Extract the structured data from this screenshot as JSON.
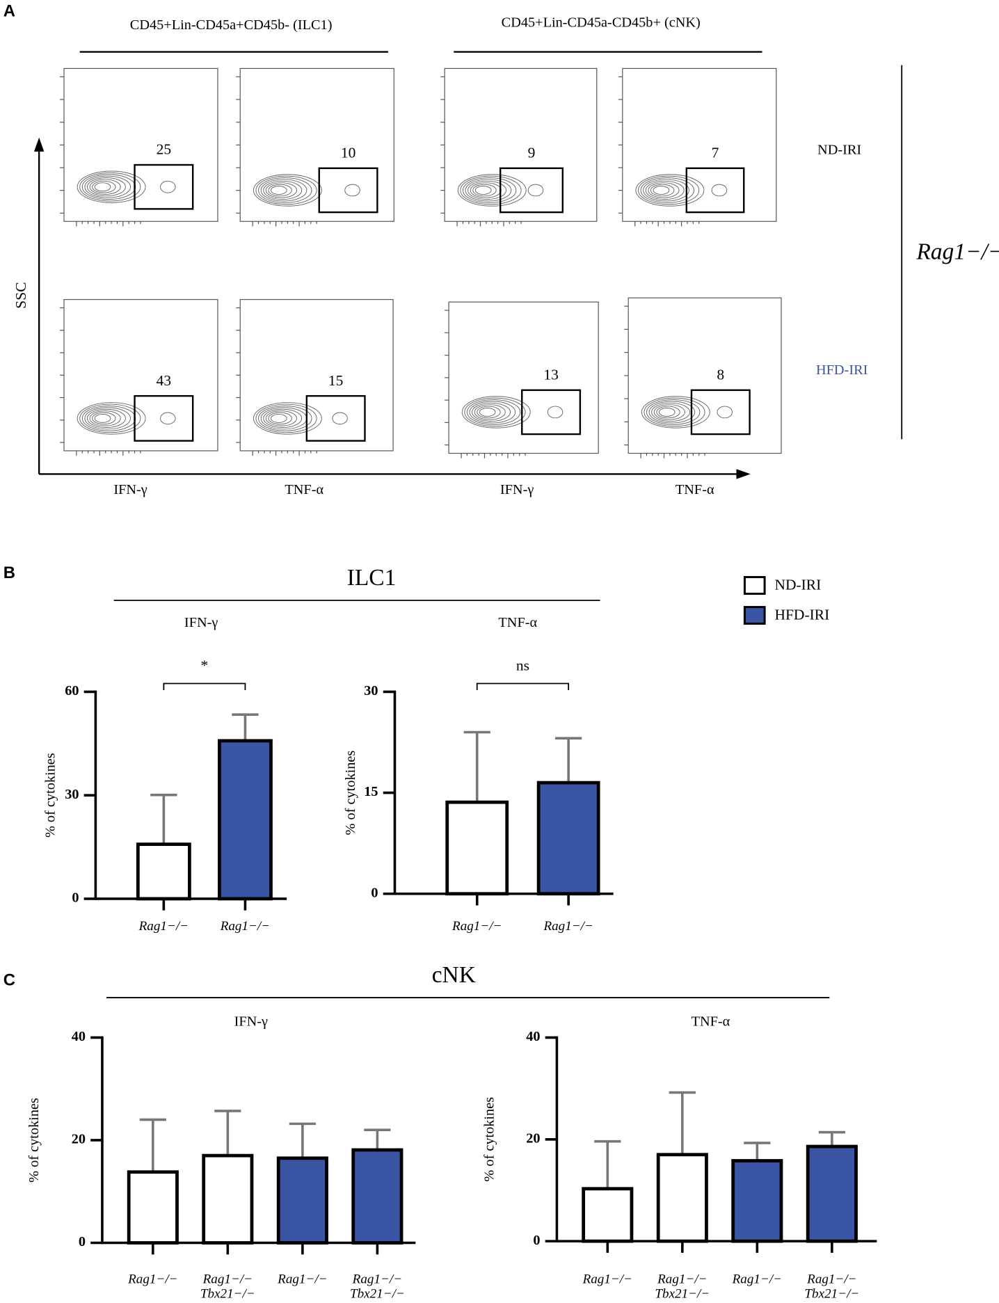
{
  "panel_labels": [
    "A",
    "B",
    "C"
  ],
  "panel_a": {
    "groups": [
      "CD45+Lin-CD45a+CD45b- (ILC1)",
      "CD45+Lin-CD45a-CD45b+ (cNK)"
    ],
    "y_axis": "SSC",
    "x_labels": [
      "IFN-γ",
      "TNF-α",
      "IFN-γ",
      "TNF-α"
    ],
    "rows": [
      {
        "name": "ND-IRI",
        "gates": [
          25,
          10,
          9,
          7
        ]
      },
      {
        "name": "HFD-IRI",
        "gates": [
          43,
          15,
          13,
          8
        ]
      }
    ],
    "strain": "Rag1−/−"
  },
  "panel_b_title": "ILC1",
  "panel_c_title": "cNK",
  "chart_data": [
    {
      "type": "bar",
      "title": "IFN-γ",
      "ylabel": "% of cytokines",
      "categories": [
        "Rag1−/−",
        "Rag1−/−"
      ],
      "series": [
        {
          "name": "ND-IRI",
          "color": "#ffffff",
          "values": [
            15.8,
            null
          ],
          "errors": [
            14.3,
            null
          ]
        },
        {
          "name": "HFD-IRI",
          "color": "#3a55a4",
          "values": [
            null,
            45.8
          ],
          "errors": [
            null,
            7.6
          ]
        }
      ],
      "ylim": [
        0,
        60
      ],
      "yticks": [
        0,
        30,
        60
      ],
      "significance": "*",
      "legend": true
    },
    {
      "type": "bar",
      "title": "TNF-α",
      "ylabel": "% of cytokines",
      "categories": [
        "Rag1−/−",
        "Rag1−/−"
      ],
      "series": [
        {
          "name": "ND-IRI",
          "color": "#ffffff",
          "values": [
            13.6,
            null
          ],
          "errors": [
            10.4,
            null
          ]
        },
        {
          "name": "HFD-IRI",
          "color": "#3a55a4",
          "values": [
            null,
            16.5
          ],
          "errors": [
            null,
            6.6
          ]
        }
      ],
      "ylim": [
        0,
        30
      ],
      "yticks": [
        0,
        15,
        30
      ],
      "significance": "ns",
      "legend": false
    },
    {
      "type": "bar",
      "title": "IFN-γ",
      "ylabel": "% of cytokines",
      "categories": [
        "Rag1−/−",
        "Rag1−/−\nTbx21−/−",
        "Rag1−/−",
        "Rag1−/−\nTbx21−/−"
      ],
      "series": [
        {
          "name": "ND-IRI",
          "color": "#ffffff",
          "values": [
            13.8,
            17.0,
            null,
            null
          ],
          "errors": [
            10.2,
            8.7,
            null,
            null
          ]
        },
        {
          "name": "HFD-IRI",
          "color": "#3a55a4",
          "values": [
            null,
            null,
            16.5,
            18.1
          ],
          "errors": [
            null,
            null,
            6.7,
            3.9
          ]
        }
      ],
      "ylim": [
        0,
        40
      ],
      "yticks": [
        0,
        20,
        40
      ],
      "legend": false
    },
    {
      "type": "bar",
      "title": "TNF-α",
      "ylabel": "% of cytokines",
      "categories": [
        "Rag1−/−",
        "Rag1−/−\nTbx21−/−",
        "Rag1−/−",
        "Rag1−/−\nTbx21−/−"
      ],
      "series": [
        {
          "name": "ND-IRI",
          "color": "#ffffff",
          "values": [
            10.3,
            17.0,
            null,
            null
          ],
          "errors": [
            9.3,
            12.2,
            null,
            null
          ]
        },
        {
          "name": "HFD-IRI",
          "color": "#3a55a4",
          "values": [
            null,
            null,
            15.8,
            18.6
          ],
          "errors": [
            null,
            null,
            3.5,
            2.8
          ]
        }
      ],
      "ylim": [
        0,
        40
      ],
      "yticks": [
        0,
        20,
        40
      ],
      "legend": false
    }
  ]
}
